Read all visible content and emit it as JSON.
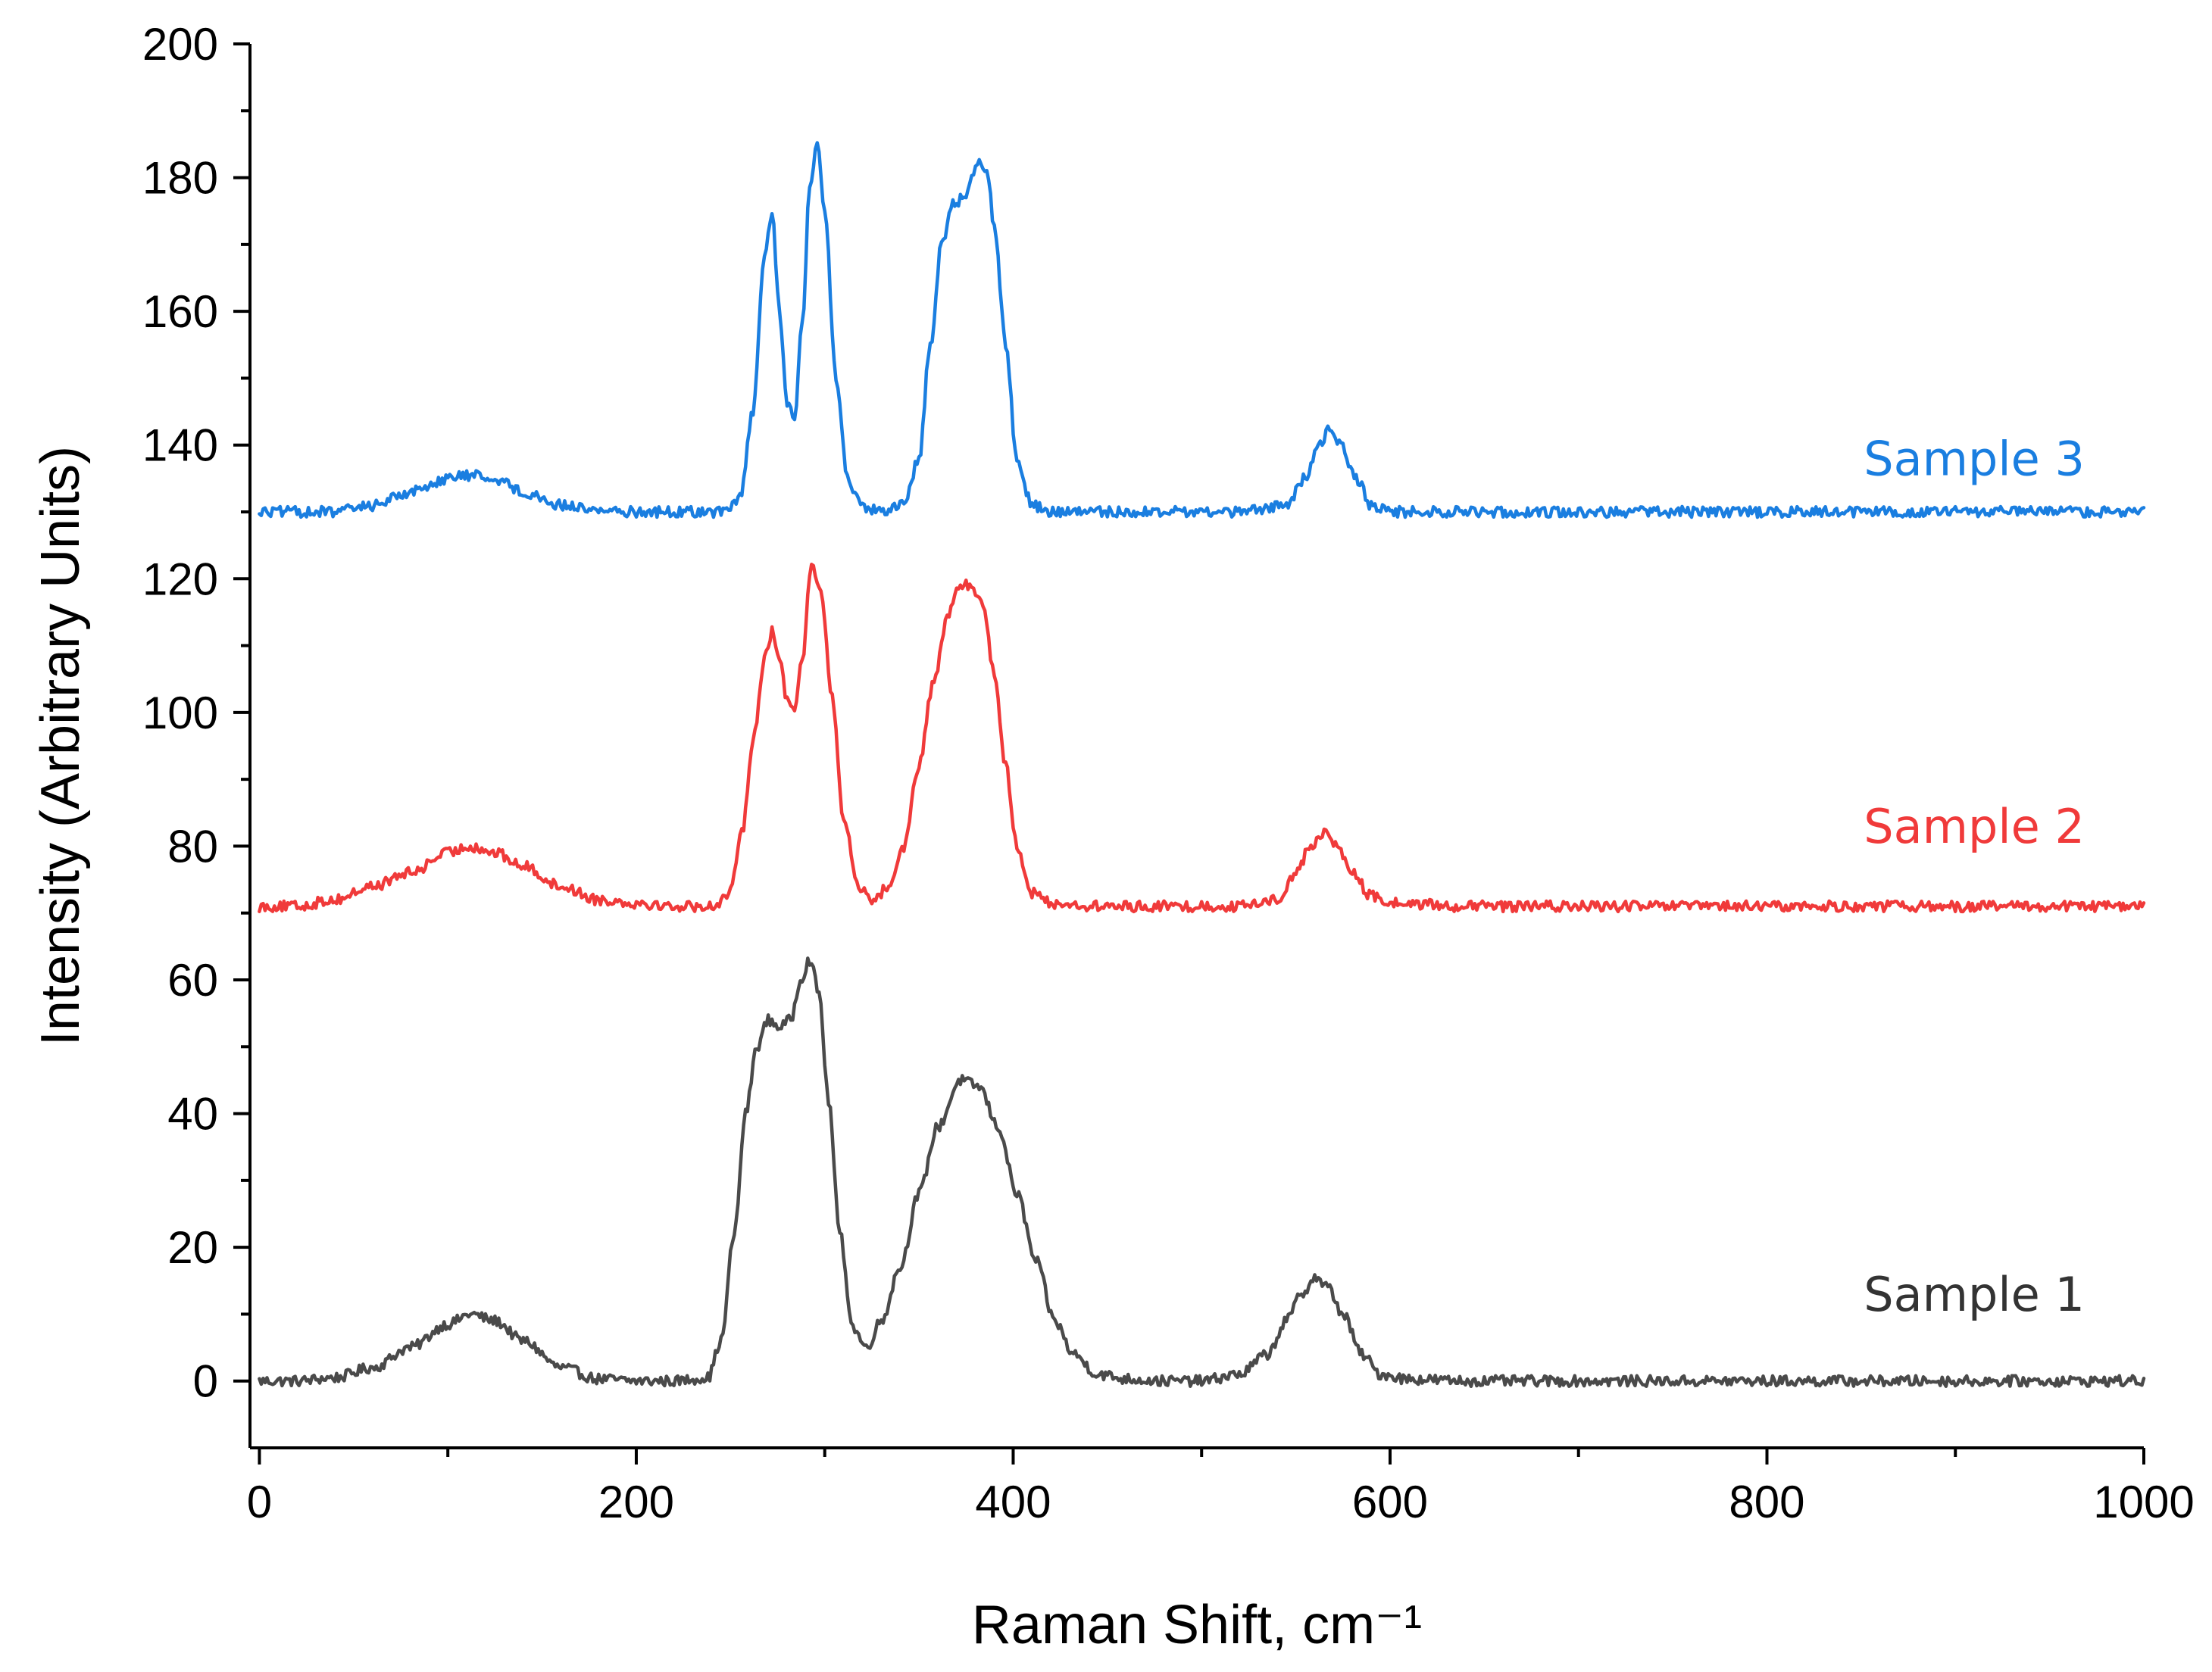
{
  "chart_data": {
    "type": "line",
    "title": "",
    "xlabel": "Raman Shift, cm⁻¹",
    "ylabel": "Intensity (Arbitrary Units)",
    "xlim": [
      -5,
      1000
    ],
    "ylim": [
      -10,
      200
    ],
    "x_ticks": [
      "0",
      "200",
      "400",
      "600",
      "800",
      "1000"
    ],
    "y_ticks": [
      "0",
      "20",
      "40",
      "60",
      "80",
      "100",
      "120",
      "140",
      "160",
      "180",
      "200"
    ],
    "grid": false,
    "series": [
      {
        "name": "Sample 1",
        "color": "#4a4a4a",
        "x": [
          0,
          20,
          40,
          60,
          80,
          100,
          112,
          125,
          140,
          160,
          180,
          200,
          220,
          238,
          245,
          252,
          258,
          264,
          270,
          276,
          282,
          287,
          292,
          297,
          302,
          308,
          315,
          322,
          330,
          340,
          350,
          360,
          372,
          382,
          392,
          402,
          412,
          422,
          432,
          445,
          460,
          480,
          500,
          520,
          535,
          545,
          553,
          560,
          567,
          575,
          585,
          595,
          610,
          640,
          680,
          720,
          760,
          800,
          840,
          880,
          920,
          960,
          1000
        ],
        "values": [
          0,
          0,
          0.5,
          2,
          5,
          8.5,
          10,
          9,
          6,
          2,
          0.3,
          0,
          0,
          0.5,
          6,
          22,
          40,
          50,
          54,
          53,
          54,
          60,
          63,
          58,
          42,
          22,
          8,
          5,
          9,
          17,
          28,
          38,
          45,
          44,
          38,
          28,
          18,
          9,
          4,
          1,
          0.3,
          0,
          0,
          1,
          4,
          9,
          13,
          15.5,
          14,
          10,
          4,
          1,
          0.3,
          0,
          0,
          0,
          0,
          0,
          0,
          0,
          0,
          0,
          0
        ]
      },
      {
        "name": "Sample 2",
        "color": "#f03a3a",
        "x": [
          0,
          20,
          40,
          60,
          80,
          100,
          112,
          125,
          140,
          160,
          180,
          200,
          220,
          240,
          250,
          256,
          262,
          268,
          272,
          276,
          280,
          284,
          288,
          293,
          298,
          304,
          310,
          318,
          326,
          334,
          342,
          350,
          358,
          366,
          372,
          378,
          384,
          390,
          396,
          402,
          410,
          420,
          440,
          480,
          520,
          540,
          550,
          558,
          565,
          572,
          580,
          590,
          600,
          640,
          700,
          760,
          820,
          880,
          940,
          1000
        ],
        "values": [
          71,
          71,
          72,
          74,
          76,
          79,
          80,
          79,
          77,
          74,
          72,
          71.5,
          71,
          71,
          73,
          82,
          96,
          108,
          112,
          108,
          102,
          101,
          108,
          122,
          118,
          102,
          84,
          74,
          72,
          74,
          80,
          92,
          105,
          115,
          119,
          119,
          116,
          106,
          92,
          80,
          73,
          71.5,
          71,
          71,
          71,
          72,
          76,
          80,
          82,
          80,
          76,
          72.5,
          71.5,
          71,
          71,
          71,
          71,
          71,
          71,
          71
        ]
      },
      {
        "name": "Sample 3",
        "color": "#1a7ee0",
        "x": [
          0,
          20,
          40,
          60,
          80,
          100,
          112,
          125,
          140,
          160,
          180,
          200,
          220,
          245,
          255,
          262,
          268,
          272,
          276,
          280,
          284,
          288,
          292,
          296,
          300,
          306,
          312,
          320,
          332,
          342,
          350,
          356,
          362,
          368,
          374,
          378,
          382,
          386,
          390,
          396,
          402,
          410,
          420,
          440,
          480,
          520,
          545,
          555,
          562,
          568,
          574,
          582,
          590,
          600,
          640,
          700,
          760,
          820,
          880,
          940,
          1000
        ],
        "values": [
          130,
          130,
          130,
          131,
          133,
          135,
          135.5,
          135,
          133,
          131,
          130.3,
          130,
          130,
          130,
          132,
          145,
          168,
          175,
          160,
          146,
          144,
          158,
          178,
          185,
          175,
          150,
          135,
          130.5,
          130,
          131,
          138,
          155,
          170,
          176,
          177,
          180,
          183,
          181,
          173,
          155,
          138,
          131,
          130,
          130,
          130,
          130,
          131,
          135,
          140,
          142.5,
          140,
          135,
          131,
          130,
          130,
          130,
          130,
          130,
          130,
          130,
          130
        ]
      }
    ],
    "annotations": [
      {
        "text": "Sample 3",
        "color": "#1a7ee0",
        "x": 910,
        "y": 138
      },
      {
        "text": "Sample 2",
        "color": "#f03a3a",
        "x": 910,
        "y": 83
      },
      {
        "text": "Sample 1",
        "color": "#333333",
        "x": 910,
        "y": 13
      }
    ]
  }
}
